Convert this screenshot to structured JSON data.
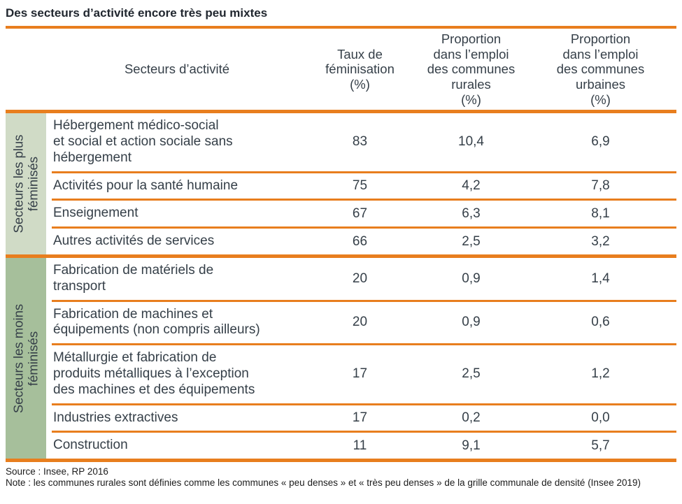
{
  "title": "Des secteurs d’activité encore très peu mixtes",
  "colors": {
    "orange": "#e87e1e",
    "green_light": "#d0dbc6",
    "green_dark": "#a6bf9b",
    "title_color": "#21272f",
    "body_color": "#353f48"
  },
  "chart_data": {
    "type": "table",
    "title": "Des secteurs d’activité encore très peu mixtes",
    "columns": [
      "Secteurs d’activité",
      "Taux de féminisation (%)",
      "Proportion dans l’emploi des communes rurales (%)",
      "Proportion dans l’emploi des communes urbaines (%)"
    ],
    "header": {
      "sector": "Secteurs d’activité",
      "taux_lines": [
        "Taux de",
        "féminisation",
        "(%)"
      ],
      "rural_lines": [
        "Proportion",
        "dans l’emploi",
        "des communes",
        "rurales",
        "(%)"
      ],
      "urbain_lines": [
        "Proportion",
        "dans l’emploi",
        "des communes",
        "urbaines",
        "(%)"
      ]
    },
    "groups": [
      {
        "label": "Secteurs les plus féminisés",
        "label_lines": [
          "Secteurs les plus",
          "féminisés"
        ],
        "rows": [
          {
            "name": "Hébergement médico-social et social et action sociale sans hébergement",
            "name_lines": [
              "Hébergement médico-social",
              "et social et action sociale sans",
              "hébergement"
            ],
            "taux": "83",
            "rural": "10,4",
            "urbain": "6,9"
          },
          {
            "name": "Activités pour la santé humaine",
            "name_lines": [
              "Activités pour la santé humaine"
            ],
            "taux": "75",
            "rural": "4,2",
            "urbain": "7,8"
          },
          {
            "name": "Enseignement",
            "name_lines": [
              "Enseignement"
            ],
            "taux": "67",
            "rural": "6,3",
            "urbain": "8,1"
          },
          {
            "name": "Autres activités de services",
            "name_lines": [
              "Autres activités de services"
            ],
            "taux": "66",
            "rural": "2,5",
            "urbain": "3,2"
          }
        ]
      },
      {
        "label": "Secteurs les moins féminisés",
        "label_lines": [
          "Secteurs les moins",
          "féminisés"
        ],
        "rows": [
          {
            "name": "Fabrication de matériels de transport",
            "name_lines": [
              "Fabrication de matériels de",
              "transport"
            ],
            "taux": "20",
            "rural": "0,9",
            "urbain": "1,4"
          },
          {
            "name": "Fabrication de machines et équipements (non compris ailleurs)",
            "name_lines": [
              "Fabrication de machines et",
              "équipements (non compris ailleurs)"
            ],
            "taux": "20",
            "rural": "0,9",
            "urbain": "0,6"
          },
          {
            "name": "Métallurgie et fabrication de produits métalliques à l’exception des machines et des équipements",
            "name_lines": [
              "Métallurgie et fabrication de",
              "produits métalliques à l’exception",
              "des machines et des équipements"
            ],
            "taux": "17",
            "rural": "2,5",
            "urbain": "1,2"
          },
          {
            "name": "Industries extractives",
            "name_lines": [
              "Industries extractives"
            ],
            "taux": "17",
            "rural": "0,2",
            "urbain": "0,0"
          },
          {
            "name": "Construction",
            "name_lines": [
              "Construction"
            ],
            "taux": "11",
            "rural": "9,1",
            "urbain": "5,7"
          }
        ]
      }
    ],
    "source": "Source : Insee, RP 2016",
    "note": "Note : les communes rurales sont définies comme les communes « peu denses » et « très peu denses » de la grille communale de densité (Insee 2019)"
  }
}
